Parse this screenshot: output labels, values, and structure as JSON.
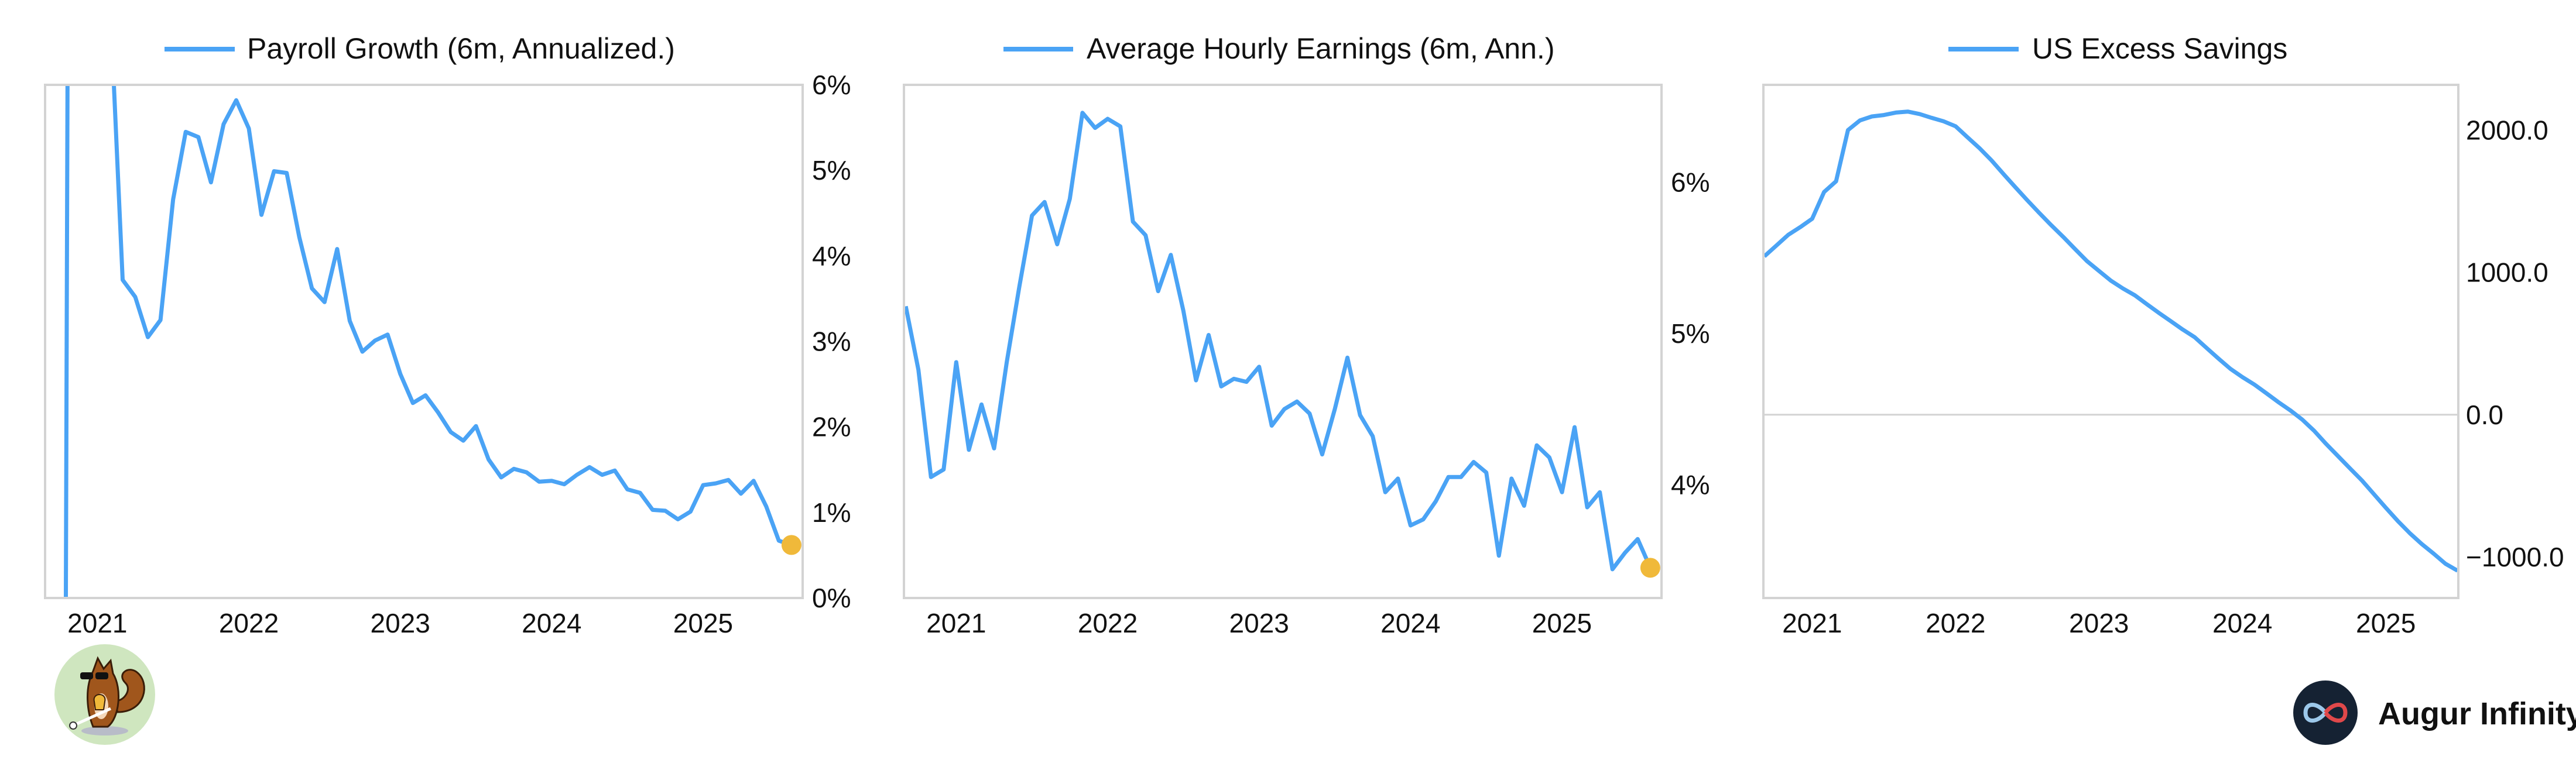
{
  "colors": {
    "line": "#4aa3f5",
    "last_point": "#f0b93a",
    "frame": "#d3d3d3",
    "zero_line": "#d3d3d3"
  },
  "branding": {
    "left_logo": "squirrel-mascot-logo",
    "right_logo_text": "Augur Infinity"
  },
  "chart_data": [
    {
      "type": "line",
      "legend": "Payroll Growth (6m, Annualized.)",
      "legend_placement": "top",
      "y_axis_side": "right",
      "ylim": [
        0,
        6
      ],
      "yticks": [
        0,
        1,
        2,
        3,
        4,
        5,
        6
      ],
      "ytick_labels": [
        "0%",
        "1%",
        "2%",
        "3%",
        "4%",
        "5%",
        "6%"
      ],
      "xlim": [
        "2020-08-27",
        "2025-08-28"
      ],
      "xticks": [
        "2021",
        "2022",
        "2023",
        "2024",
        "2025"
      ],
      "grid": false,
      "highlight_last_point": true,
      "x": [
        "2020-10",
        "2020-11",
        "2020-12",
        "2021-01",
        "2021-02",
        "2021-03",
        "2021-04",
        "2021-05",
        "2021-06",
        "2021-07",
        "2021-08",
        "2021-09",
        "2021-10",
        "2021-11",
        "2021-12",
        "2022-01",
        "2022-02",
        "2022-03",
        "2022-04",
        "2022-05",
        "2022-06",
        "2022-07",
        "2022-08",
        "2022-09",
        "2022-10",
        "2022-11",
        "2022-12",
        "2023-01",
        "2023-02",
        "2023-03",
        "2023-04",
        "2023-05",
        "2023-06",
        "2023-07",
        "2023-08",
        "2023-09",
        "2023-10",
        "2023-11",
        "2023-12",
        "2024-01",
        "2024-02",
        "2024-03",
        "2024-04",
        "2024-05",
        "2024-06",
        "2024-07",
        "2024-08",
        "2024-09",
        "2024-10",
        "2024-11",
        "2024-12",
        "2025-01",
        "2025-02",
        "2025-03",
        "2025-04",
        "2025-05",
        "2025-06",
        "2025-07",
        "2025-08"
      ],
      "values": [
        -23,
        23,
        15,
        10,
        7,
        3.72,
        3.52,
        3.05,
        3.25,
        4.66,
        5.45,
        5.39,
        4.86,
        5.54,
        5.82,
        5.49,
        4.48,
        4.99,
        4.97,
        4.22,
        3.62,
        3.46,
        4.08,
        3.24,
        2.88,
        3.01,
        3.08,
        2.62,
        2.28,
        2.37,
        2.17,
        1.94,
        1.84,
        2.01,
        1.62,
        1.41,
        1.51,
        1.47,
        1.36,
        1.37,
        1.33,
        1.44,
        1.53,
        1.44,
        1.49,
        1.27,
        1.23,
        1.03,
        1.02,
        0.92,
        1.01,
        1.32,
        1.34,
        1.38,
        1.22,
        1.37,
        1.07,
        0.67,
        0.62
      ]
    },
    {
      "type": "line",
      "legend": "Average Hourly Earnings (6m, Ann.)",
      "legend_placement": "top",
      "y_axis_side": "right",
      "ylim": [
        3.25,
        6.645
      ],
      "yticks": [
        4,
        5,
        6
      ],
      "ytick_labels": [
        "4%",
        "5%",
        "6%"
      ],
      "xlim": [
        "2020-08-27",
        "2025-08-28"
      ],
      "xticks": [
        "2021",
        "2022",
        "2023",
        "2024",
        "2025"
      ],
      "grid": false,
      "highlight_last_point": true,
      "x": [
        "2020-09",
        "2020-10",
        "2020-11",
        "2020-12",
        "2021-01",
        "2021-02",
        "2021-03",
        "2021-04",
        "2021-05",
        "2021-06",
        "2021-07",
        "2021-08",
        "2021-09",
        "2021-10",
        "2021-11",
        "2021-12",
        "2022-01",
        "2022-02",
        "2022-03",
        "2022-04",
        "2022-05",
        "2022-06",
        "2022-07",
        "2022-08",
        "2022-09",
        "2022-10",
        "2022-11",
        "2022-12",
        "2023-01",
        "2023-02",
        "2023-03",
        "2023-04",
        "2023-05",
        "2023-06",
        "2023-07",
        "2023-08",
        "2023-09",
        "2023-10",
        "2023-11",
        "2023-12",
        "2024-01",
        "2024-02",
        "2024-03",
        "2024-04",
        "2024-05",
        "2024-06",
        "2024-07",
        "2024-08",
        "2024-09",
        "2024-10",
        "2024-11",
        "2024-12",
        "2025-01",
        "2025-02",
        "2025-03",
        "2025-04",
        "2025-05",
        "2025-06",
        "2025-07",
        "2025-08"
      ],
      "values": [
        5.18,
        4.76,
        4.05,
        4.1,
        4.81,
        4.23,
        4.53,
        4.24,
        4.81,
        5.31,
        5.78,
        5.87,
        5.59,
        5.89,
        6.46,
        6.36,
        6.42,
        6.37,
        5.74,
        5.65,
        5.28,
        5.52,
        5.15,
        4.69,
        4.99,
        4.65,
        4.7,
        4.68,
        4.78,
        4.39,
        4.5,
        4.55,
        4.47,
        4.2,
        4.5,
        4.84,
        4.46,
        4.32,
        3.95,
        4.04,
        3.73,
        3.77,
        3.89,
        4.05,
        4.05,
        4.15,
        4.08,
        3.53,
        4.04,
        3.86,
        4.26,
        4.18,
        3.95,
        4.38,
        3.85,
        3.95,
        3.44,
        3.55,
        3.64,
        3.45
      ]
    },
    {
      "type": "line",
      "legend": "US Excess Savings",
      "legend_placement": "top",
      "y_axis_side": "right",
      "ylim": [
        -1288,
        2318
      ],
      "yticks": [
        -1000,
        0,
        1000,
        2000
      ],
      "ytick_labels": [
        "−1000.0",
        "0.0",
        "1000.0",
        "2000.0"
      ],
      "xlim": [
        "2020-08-29",
        "2025-07-03"
      ],
      "xticks": [
        "2021",
        "2022",
        "2023",
        "2024",
        "2025"
      ],
      "grid": false,
      "zero_line": true,
      "highlight_last_point": false,
      "x": [
        "2020-09",
        "2020-10",
        "2020-11",
        "2020-12",
        "2021-01",
        "2021-02",
        "2021-03",
        "2021-04",
        "2021-05",
        "2021-06",
        "2021-07",
        "2021-08",
        "2021-09",
        "2021-10",
        "2021-11",
        "2021-12",
        "2022-01",
        "2022-02",
        "2022-03",
        "2022-04",
        "2022-05",
        "2022-06",
        "2022-07",
        "2022-08",
        "2022-09",
        "2022-10",
        "2022-11",
        "2022-12",
        "2023-01",
        "2023-02",
        "2023-03",
        "2023-04",
        "2023-05",
        "2023-06",
        "2023-07",
        "2023-08",
        "2023-09",
        "2023-10",
        "2023-11",
        "2023-12",
        "2024-01",
        "2024-02",
        "2024-03",
        "2024-04",
        "2024-05",
        "2024-06",
        "2024-07",
        "2024-08",
        "2024-09",
        "2024-10",
        "2024-11",
        "2024-12",
        "2025-01",
        "2025-02",
        "2025-03",
        "2025-04",
        "2025-05",
        "2025-06",
        "2025-07"
      ],
      "values": [
        1113,
        1188,
        1264,
        1318,
        1377,
        1565,
        1640,
        2000,
        2068,
        2096,
        2106,
        2123,
        2130,
        2113,
        2086,
        2062,
        2027,
        1949,
        1873,
        1788,
        1692,
        1599,
        1507,
        1418,
        1332,
        1250,
        1164,
        1079,
        1010,
        942,
        887,
        839,
        777,
        716,
        658,
        599,
        545,
        469,
        394,
        322,
        264,
        212,
        151,
        89,
        31,
        -34,
        -113,
        -205,
        -291,
        -377,
        -462,
        -558,
        -654,
        -747,
        -832,
        -908,
        -976,
        -1048,
        -1096
      ]
    }
  ]
}
